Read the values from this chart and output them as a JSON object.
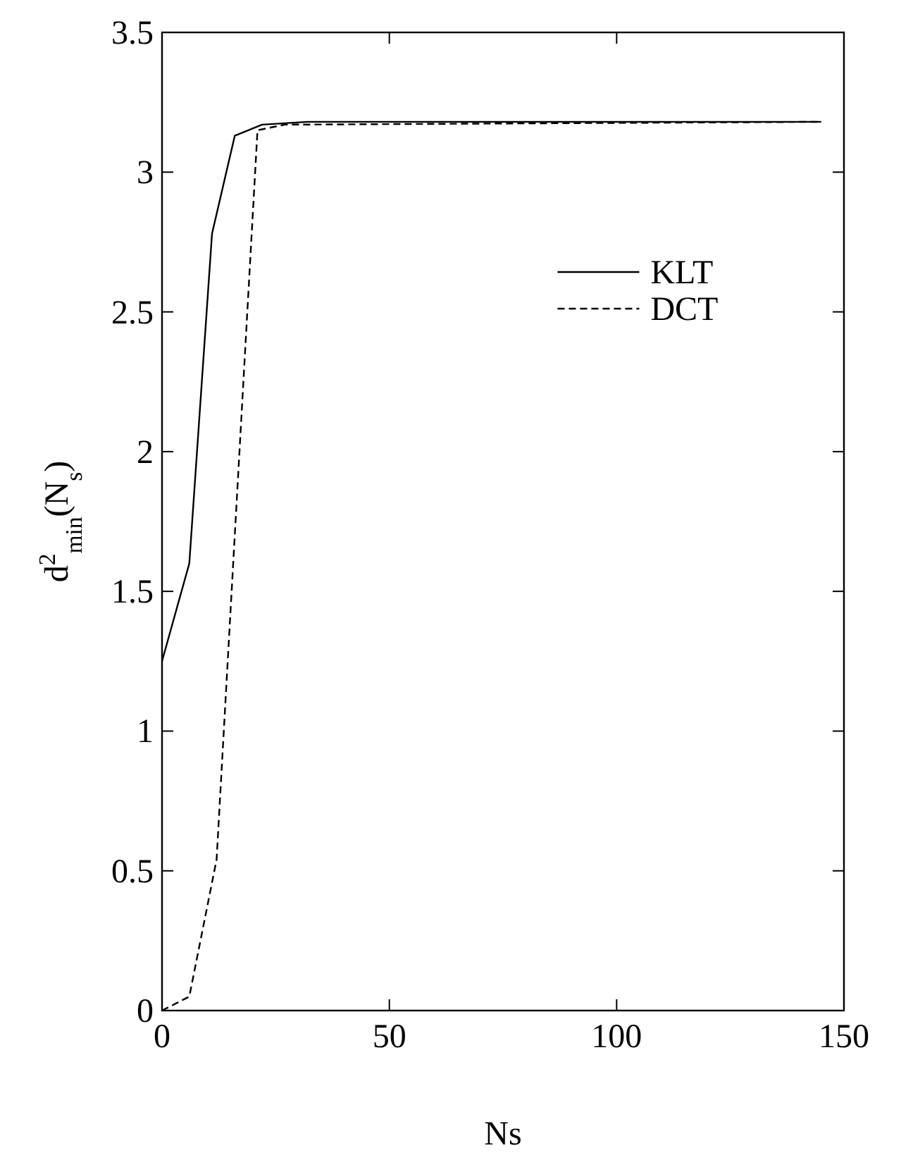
{
  "chart_data": {
    "type": "line",
    "xlabel": "Ns",
    "ylabel": "d$^{2}$$_{min}$(N$_{s}$)",
    "xlim": [
      0,
      150
    ],
    "ylim": [
      0,
      3.5
    ],
    "xticks": [
      0,
      50,
      100,
      150
    ],
    "yticks": [
      0,
      0.5,
      1,
      1.5,
      2,
      2.5,
      3,
      3.5
    ],
    "legend": "right",
    "grid": false,
    "series": [
      {
        "name": "KLT",
        "color": "#000000",
        "line_style": "solid",
        "x": [
          0,
          6,
          11,
          16,
          22,
          32,
          145
        ],
        "values": [
          1.25,
          1.6,
          2.78,
          3.13,
          3.17,
          3.18,
          3.18
        ]
      },
      {
        "name": "DCT",
        "color": "#000000",
        "line_style": "dashed",
        "x": [
          0,
          6,
          12,
          21,
          27,
          145
        ],
        "values": [
          0,
          0.05,
          0.54,
          3.15,
          3.17,
          3.18
        ]
      }
    ]
  }
}
